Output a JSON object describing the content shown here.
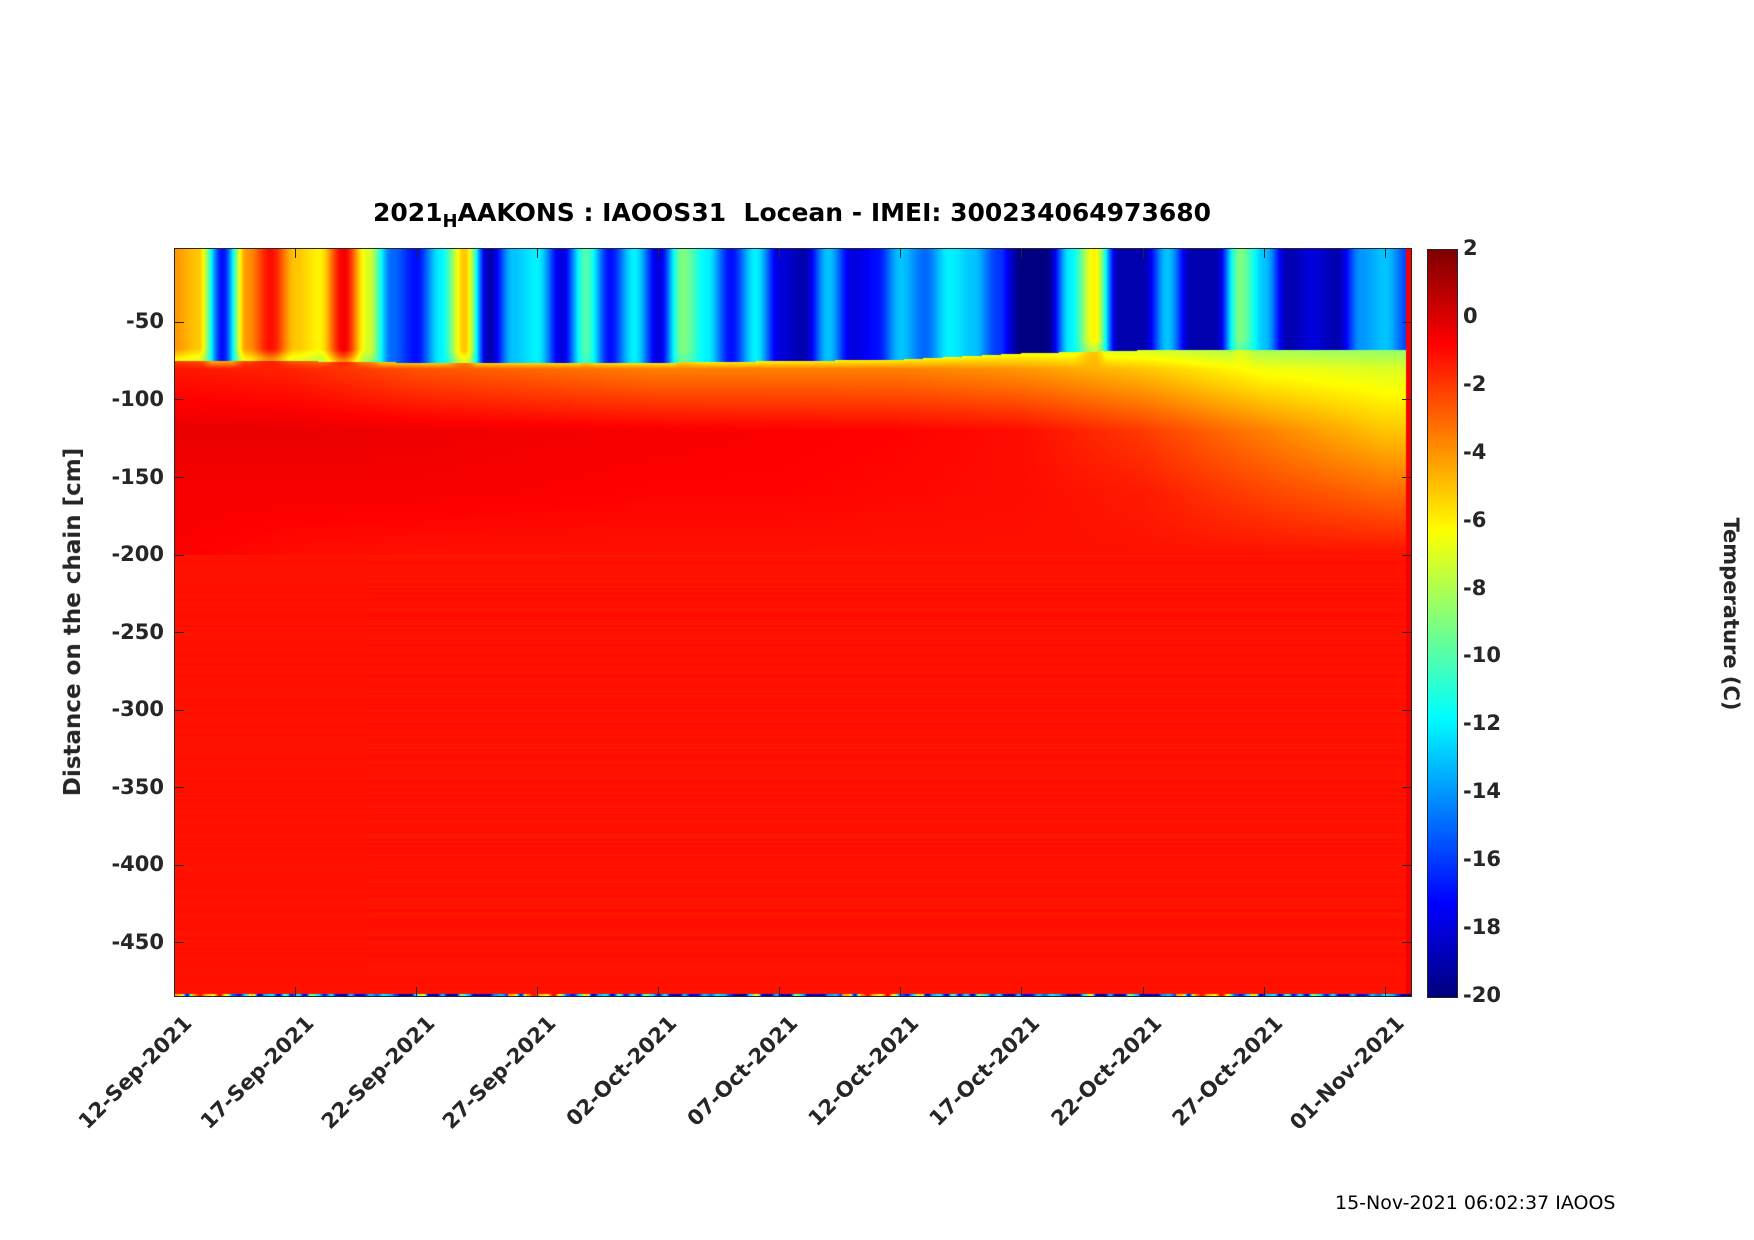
{
  "chart_data": {
    "type": "heatmap",
    "title_prefix": "2021",
    "title_sub": "H",
    "title_rest": "AAKONS : IAOOS31  Locean - IMEI: 300234064973680",
    "ylabel": "Distance on the chain [cm]",
    "colorbar_label": "Temperature (C)",
    "x_start_date": "12-Sep-2021",
    "xlim_days": [
      0,
      51.1
    ],
    "ylim": [
      -485,
      -2
    ],
    "clim": [
      -20,
      2
    ],
    "colormap": "jet",
    "x_ticks": [
      {
        "day": 0,
        "label": "12-Sep-2021"
      },
      {
        "day": 5,
        "label": "17-Sep-2021"
      },
      {
        "day": 10,
        "label": "22-Sep-2021"
      },
      {
        "day": 15,
        "label": "27-Sep-2021"
      },
      {
        "day": 20,
        "label": "02-Oct-2021"
      },
      {
        "day": 25,
        "label": "07-Oct-2021"
      },
      {
        "day": 30,
        "label": "12-Oct-2021"
      },
      {
        "day": 35,
        "label": "17-Oct-2021"
      },
      {
        "day": 40,
        "label": "22-Oct-2021"
      },
      {
        "day": 45,
        "label": "27-Oct-2021"
      },
      {
        "day": 50,
        "label": "01-Nov-2021"
      }
    ],
    "y_ticks": [
      {
        "value": -50,
        "label": "-50"
      },
      {
        "value": -100,
        "label": "-100"
      },
      {
        "value": -150,
        "label": "-150"
      },
      {
        "value": -200,
        "label": "-200"
      },
      {
        "value": -250,
        "label": "-250"
      },
      {
        "value": -300,
        "label": "-300"
      },
      {
        "value": -350,
        "label": "-350"
      },
      {
        "value": -400,
        "label": "-400"
      },
      {
        "value": -450,
        "label": "-450"
      }
    ],
    "c_ticks": [
      {
        "value": 2,
        "label": "2"
      },
      {
        "value": 0,
        "label": "0"
      },
      {
        "value": -2,
        "label": "-2"
      },
      {
        "value": -4,
        "label": "-4"
      },
      {
        "value": -6,
        "label": "-6"
      },
      {
        "value": -8,
        "label": "-8"
      },
      {
        "value": -10,
        "label": "-10"
      },
      {
        "value": -12,
        "label": "-12"
      },
      {
        "value": -14,
        "label": "-14"
      },
      {
        "value": -16,
        "label": "-16"
      },
      {
        "value": -18,
        "label": "-18"
      },
      {
        "value": -20,
        "label": "-20"
      }
    ],
    "surface_layer_temp_daily": [
      -4,
      -5,
      -17,
      -4,
      -1,
      -5,
      -6,
      -0.5,
      -7,
      -15,
      -17,
      -12,
      -5,
      -19,
      -13,
      -12,
      -18,
      -10,
      -17,
      -12,
      -18,
      -9,
      -12,
      -17,
      -12,
      -18,
      -19,
      -13,
      -18,
      -17,
      -13,
      -15,
      -12,
      -13,
      -16,
      -20,
      -20,
      -12,
      -6,
      -19,
      -19,
      -13,
      -19,
      -19,
      -9,
      -13,
      -19,
      -18,
      -19,
      -14,
      -13,
      -16
    ],
    "profile_days": [
      0,
      5,
      10,
      15,
      20,
      25,
      30,
      35,
      40,
      45,
      50
    ],
    "snow_ice_interface_cm": [
      -75,
      -75,
      -76,
      -76,
      -76,
      -75,
      -74,
      -70,
      -68,
      -68,
      -68
    ],
    "temp_at_minus80": [
      -1.2,
      -1.5,
      -2.5,
      -3,
      -3.5,
      -3.5,
      -3.5,
      -4,
      -5,
      -6.5,
      -7
    ],
    "temp_at_minus120": [
      -0.3,
      -0.3,
      -0.4,
      -0.5,
      -0.6,
      -0.7,
      -0.8,
      -1,
      -2,
      -3.5,
      -5
    ],
    "temp_at_minus160": [
      -0.6,
      -0.6,
      -0.6,
      -0.7,
      -0.8,
      -0.8,
      -0.9,
      -1,
      -1.3,
      -2.2,
      -3
    ],
    "temp_at_minus200": [
      -0.7,
      -1.0,
      -1.1,
      -1.1,
      -1.1,
      -1.1,
      -1.1,
      -1.1,
      -1.1,
      -1.1,
      -1.1
    ],
    "water_temp": -1.1
  },
  "footer": "15-Nov-2021 06:02:37 IAOOS"
}
